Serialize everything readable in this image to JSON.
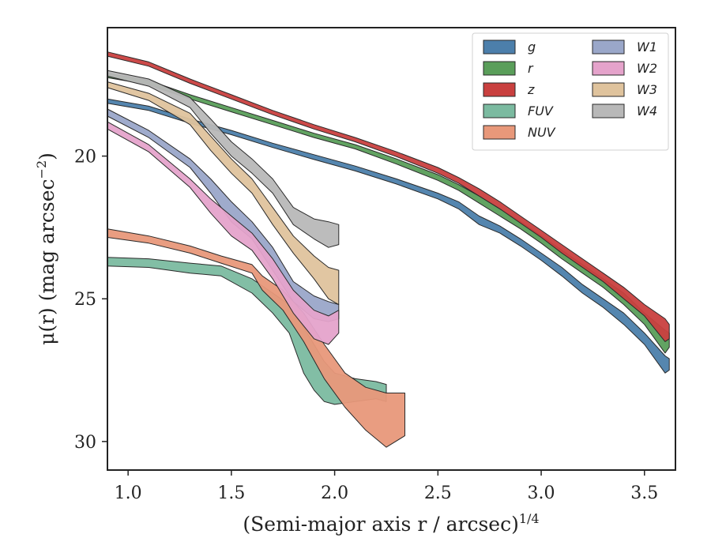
{
  "chart_data": {
    "type": "area",
    "title": "",
    "xlabel": "(Semi-major axis r / arcsec)",
    "xlabel_sup": "1/4",
    "ylabel": "μ(r) (mag arcsec",
    "ylabel_sup": "−2",
    "ylabel_close": ")",
    "xlim": [
      0.9,
      3.65
    ],
    "ylim": [
      31.0,
      15.5
    ],
    "y_inverted": true,
    "xticks": [
      1.0,
      1.5,
      2.0,
      2.5,
      3.0,
      3.5
    ],
    "xtick_labels": [
      "1.0",
      "1.5",
      "2.0",
      "2.5",
      "3.0",
      "3.5"
    ],
    "yticks": [
      20,
      25,
      30
    ],
    "ytick_labels": [
      "20",
      "25",
      "30"
    ],
    "grid": false,
    "legend_position": "top-right",
    "legend_columns": 2,
    "series": [
      {
        "name": "g",
        "color": "#4c7fab",
        "points": [
          [
            0.9,
            18.0,
            18.15
          ],
          [
            1.1,
            18.25,
            18.4
          ],
          [
            1.3,
            18.7,
            18.85
          ],
          [
            1.5,
            19.1,
            19.25
          ],
          [
            1.7,
            19.55,
            19.7
          ],
          [
            1.9,
            19.95,
            20.12
          ],
          [
            2.1,
            20.35,
            20.52
          ],
          [
            2.3,
            20.8,
            20.98
          ],
          [
            2.5,
            21.3,
            21.5
          ],
          [
            2.6,
            21.6,
            21.85
          ],
          [
            2.7,
            22.1,
            22.4
          ],
          [
            2.8,
            22.45,
            22.7
          ],
          [
            2.9,
            22.9,
            23.15
          ],
          [
            3.0,
            23.4,
            23.65
          ],
          [
            3.1,
            23.9,
            24.2
          ],
          [
            3.2,
            24.5,
            24.8
          ],
          [
            3.3,
            25.0,
            25.3
          ],
          [
            3.4,
            25.5,
            25.9
          ],
          [
            3.5,
            26.2,
            26.6
          ],
          [
            3.6,
            27.0,
            27.6
          ],
          [
            3.62,
            27.1,
            27.5
          ]
        ]
      },
      {
        "name": "r",
        "color": "#5a9e5a",
        "points": [
          [
            0.9,
            17.1,
            17.25
          ],
          [
            1.1,
            17.35,
            17.5
          ],
          [
            1.3,
            17.85,
            18.0
          ],
          [
            1.5,
            18.3,
            18.45
          ],
          [
            1.7,
            18.75,
            18.9
          ],
          [
            1.9,
            19.2,
            19.35
          ],
          [
            2.1,
            19.6,
            19.75
          ],
          [
            2.3,
            20.1,
            20.28
          ],
          [
            2.5,
            20.65,
            20.85
          ],
          [
            2.6,
            21.0,
            21.2
          ],
          [
            2.7,
            21.4,
            21.65
          ],
          [
            2.8,
            21.85,
            22.1
          ],
          [
            2.9,
            22.3,
            22.55
          ],
          [
            3.0,
            22.8,
            23.05
          ],
          [
            3.1,
            23.3,
            23.6
          ],
          [
            3.2,
            23.8,
            24.1
          ],
          [
            3.3,
            24.3,
            24.6
          ],
          [
            3.4,
            24.8,
            25.2
          ],
          [
            3.5,
            25.5,
            25.9
          ],
          [
            3.6,
            26.1,
            26.9
          ],
          [
            3.62,
            26.2,
            26.7
          ]
        ]
      },
      {
        "name": "z",
        "color": "#c9403f",
        "points": [
          [
            0.9,
            16.35,
            16.5
          ],
          [
            1.1,
            16.7,
            16.85
          ],
          [
            1.3,
            17.3,
            17.45
          ],
          [
            1.5,
            17.85,
            18.0
          ],
          [
            1.7,
            18.4,
            18.55
          ],
          [
            1.9,
            18.9,
            19.05
          ],
          [
            2.1,
            19.35,
            19.5
          ],
          [
            2.3,
            19.85,
            20.02
          ],
          [
            2.5,
            20.4,
            20.6
          ],
          [
            2.6,
            20.75,
            20.95
          ],
          [
            2.7,
            21.15,
            21.4
          ],
          [
            2.8,
            21.6,
            21.85
          ],
          [
            2.9,
            22.1,
            22.35
          ],
          [
            3.0,
            22.6,
            22.85
          ],
          [
            3.1,
            23.1,
            23.4
          ],
          [
            3.2,
            23.6,
            23.9
          ],
          [
            3.3,
            24.1,
            24.4
          ],
          [
            3.4,
            24.6,
            25.0
          ],
          [
            3.5,
            25.2,
            25.6
          ],
          [
            3.6,
            25.7,
            26.5
          ],
          [
            3.62,
            25.9,
            26.4
          ]
        ]
      },
      {
        "name": "FUV",
        "color": "#7bbaa0",
        "points": [
          [
            0.9,
            23.55,
            23.85
          ],
          [
            1.1,
            23.6,
            23.9
          ],
          [
            1.3,
            23.75,
            24.1
          ],
          [
            1.45,
            23.85,
            24.2
          ],
          [
            1.6,
            24.3,
            24.8
          ],
          [
            1.7,
            24.8,
            25.5
          ],
          [
            1.78,
            25.2,
            26.2
          ],
          [
            1.85,
            26.0,
            27.6
          ],
          [
            1.9,
            26.6,
            28.2
          ],
          [
            1.95,
            27.2,
            28.6
          ],
          [
            2.0,
            27.6,
            28.7
          ],
          [
            2.1,
            27.8,
            28.6
          ],
          [
            2.2,
            27.9,
            28.5
          ],
          [
            2.25,
            28.0,
            28.6
          ]
        ]
      },
      {
        "name": "NUV",
        "color": "#e8987a",
        "points": [
          [
            0.9,
            22.55,
            22.85
          ],
          [
            1.1,
            22.8,
            23.05
          ],
          [
            1.3,
            23.15,
            23.4
          ],
          [
            1.45,
            23.5,
            23.75
          ],
          [
            1.6,
            23.8,
            24.1
          ],
          [
            1.65,
            24.2,
            24.7
          ],
          [
            1.75,
            24.7,
            25.4
          ],
          [
            1.85,
            25.5,
            26.5
          ],
          [
            1.95,
            26.6,
            27.8
          ],
          [
            2.05,
            27.6,
            28.8
          ],
          [
            2.15,
            28.1,
            29.6
          ],
          [
            2.25,
            28.3,
            30.2
          ],
          [
            2.34,
            28.3,
            29.8
          ]
        ]
      },
      {
        "name": "W1",
        "color": "#9aa7c9",
        "points": [
          [
            0.9,
            18.35,
            18.6
          ],
          [
            1.1,
            19.1,
            19.35
          ],
          [
            1.3,
            20.1,
            20.4
          ],
          [
            1.4,
            20.8,
            21.3
          ],
          [
            1.5,
            21.6,
            22.3
          ],
          [
            1.6,
            22.3,
            22.9
          ],
          [
            1.7,
            23.2,
            24.0
          ],
          [
            1.8,
            24.4,
            25.1
          ],
          [
            1.9,
            24.9,
            25.7
          ],
          [
            1.97,
            25.1,
            25.8
          ],
          [
            2.02,
            25.2,
            25.7
          ]
        ]
      },
      {
        "name": "W2",
        "color": "#e5a3cb",
        "points": [
          [
            0.9,
            18.8,
            19.05
          ],
          [
            1.1,
            19.6,
            19.85
          ],
          [
            1.3,
            20.8,
            21.1
          ],
          [
            1.4,
            21.5,
            22.0
          ],
          [
            1.5,
            22.1,
            22.8
          ],
          [
            1.6,
            22.7,
            23.3
          ],
          [
            1.7,
            23.6,
            24.3
          ],
          [
            1.8,
            24.7,
            25.5
          ],
          [
            1.9,
            25.4,
            26.4
          ],
          [
            1.97,
            25.6,
            26.6
          ],
          [
            2.02,
            25.4,
            26.2
          ]
        ]
      },
      {
        "name": "W3",
        "color": "#dfc39d",
        "points": [
          [
            0.9,
            17.4,
            17.6
          ],
          [
            1.1,
            17.8,
            18.05
          ],
          [
            1.3,
            18.5,
            18.9
          ],
          [
            1.4,
            19.3,
            19.8
          ],
          [
            1.5,
            20.1,
            20.6
          ],
          [
            1.6,
            20.8,
            21.3
          ],
          [
            1.7,
            21.8,
            22.4
          ],
          [
            1.8,
            22.8,
            23.4
          ],
          [
            1.9,
            23.5,
            24.3
          ],
          [
            1.97,
            23.9,
            25.0
          ],
          [
            2.02,
            24.0,
            25.2
          ]
        ]
      },
      {
        "name": "W4",
        "color": "#b8b8b8",
        "points": [
          [
            0.9,
            17.0,
            17.2
          ],
          [
            1.1,
            17.3,
            17.55
          ],
          [
            1.3,
            17.95,
            18.3
          ],
          [
            1.4,
            18.7,
            19.2
          ],
          [
            1.5,
            19.5,
            20.0
          ],
          [
            1.6,
            20.1,
            20.6
          ],
          [
            1.7,
            20.8,
            21.3
          ],
          [
            1.8,
            21.8,
            22.4
          ],
          [
            1.9,
            22.2,
            22.9
          ],
          [
            1.97,
            22.3,
            23.2
          ],
          [
            2.02,
            22.4,
            23.1
          ]
        ]
      }
    ]
  }
}
